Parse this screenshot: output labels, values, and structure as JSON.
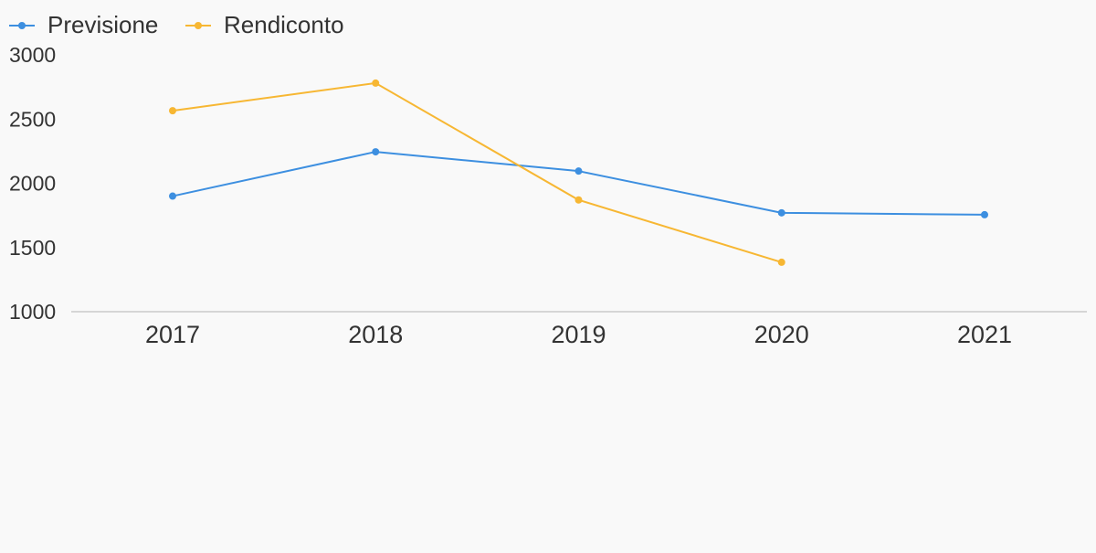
{
  "chart_data": {
    "type": "line",
    "title": "",
    "xlabel": "",
    "ylabel": "",
    "categories": [
      "2017",
      "2018",
      "2019",
      "2020",
      "2021"
    ],
    "series": [
      {
        "name": "Previsione",
        "color": "#3d8fe0",
        "values": [
          1900,
          2245,
          2095,
          1770,
          1755
        ]
      },
      {
        "name": "Rendiconto",
        "color": "#f7b733",
        "values": [
          2565,
          2780,
          1870,
          1385,
          null
        ]
      }
    ],
    "yticks": [
      "1000",
      "1500",
      "2000",
      "2500",
      "3000"
    ],
    "ylim": [
      1000,
      3000
    ],
    "grid": false,
    "legend_position": "top-left"
  }
}
